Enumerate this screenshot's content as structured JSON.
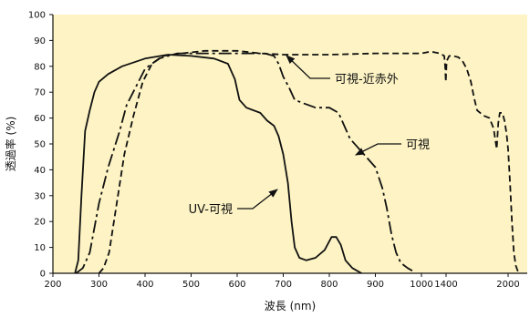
{
  "chart_data": {
    "type": "line",
    "title": "",
    "xlabel": "波長 (nm)",
    "ylabel": "透過率 (%)",
    "xlim": [
      200,
      2100
    ],
    "ylim": [
      0,
      100
    ],
    "x_ticks": [
      200,
      300,
      400,
      500,
      600,
      700,
      800,
      900,
      1000,
      1400,
      2000
    ],
    "x_tick_labels": [
      "200",
      "300",
      "400",
      "500",
      "600",
      "700",
      "800",
      "900",
      "1000",
      "1400",
      "2000"
    ],
    "y_ticks": [
      0,
      10,
      20,
      30,
      40,
      50,
      60,
      70,
      80,
      90,
      100
    ],
    "grid": false,
    "background_color": "#fdf3c4",
    "line_color": "#111111",
    "series": [
      {
        "label": "UV-可視",
        "style": "solid",
        "points": [
          [
            248,
            0
          ],
          [
            255,
            5
          ],
          [
            262,
            30
          ],
          [
            270,
            55
          ],
          [
            280,
            63
          ],
          [
            290,
            70
          ],
          [
            300,
            74
          ],
          [
            320,
            77
          ],
          [
            350,
            80
          ],
          [
            400,
            83
          ],
          [
            450,
            84.5
          ],
          [
            500,
            84
          ],
          [
            550,
            83
          ],
          [
            580,
            81
          ],
          [
            595,
            75
          ],
          [
            605,
            67
          ],
          [
            620,
            64
          ],
          [
            650,
            62
          ],
          [
            665,
            59
          ],
          [
            680,
            57
          ],
          [
            690,
            53
          ],
          [
            700,
            46
          ],
          [
            710,
            35
          ],
          [
            718,
            20
          ],
          [
            725,
            10
          ],
          [
            735,
            6
          ],
          [
            750,
            5
          ],
          [
            770,
            6
          ],
          [
            790,
            9
          ],
          [
            805,
            14
          ],
          [
            815,
            14
          ],
          [
            825,
            11
          ],
          [
            835,
            5
          ],
          [
            850,
            2
          ],
          [
            860,
            1
          ],
          [
            870,
            0
          ]
        ]
      },
      {
        "label": "可視",
        "style": "dashdot",
        "points": [
          [
            250,
            0
          ],
          [
            265,
            2
          ],
          [
            280,
            8
          ],
          [
            300,
            27
          ],
          [
            320,
            41
          ],
          [
            345,
            55
          ],
          [
            360,
            65
          ],
          [
            380,
            72
          ],
          [
            400,
            79
          ],
          [
            430,
            83
          ],
          [
            470,
            85
          ],
          [
            520,
            85
          ],
          [
            600,
            85
          ],
          [
            660,
            85
          ],
          [
            680,
            84
          ],
          [
            690,
            81
          ],
          [
            700,
            76
          ],
          [
            712,
            72
          ],
          [
            725,
            67
          ],
          [
            740,
            66
          ],
          [
            770,
            64
          ],
          [
            800,
            64
          ],
          [
            820,
            62
          ],
          [
            835,
            56
          ],
          [
            845,
            52
          ],
          [
            860,
            49
          ],
          [
            880,
            45
          ],
          [
            900,
            41
          ],
          [
            915,
            33
          ],
          [
            925,
            25
          ],
          [
            935,
            15
          ],
          [
            945,
            8
          ],
          [
            955,
            4
          ],
          [
            970,
            2
          ],
          [
            980,
            1
          ]
        ]
      },
      {
        "label": "可視-近赤外",
        "style": "dashed",
        "points": [
          [
            300,
            0
          ],
          [
            310,
            2
          ],
          [
            322,
            8
          ],
          [
            335,
            23
          ],
          [
            355,
            46
          ],
          [
            375,
            61
          ],
          [
            395,
            74
          ],
          [
            415,
            81
          ],
          [
            440,
            84
          ],
          [
            480,
            85
          ],
          [
            530,
            86
          ],
          [
            600,
            86
          ],
          [
            650,
            85
          ],
          [
            700,
            84.5
          ],
          [
            800,
            84.5
          ],
          [
            900,
            85
          ],
          [
            1000,
            85
          ],
          [
            1100,
            85.5
          ],
          [
            1200,
            85.5
          ],
          [
            1300,
            85
          ],
          [
            1370,
            84
          ],
          [
            1385,
            80
          ],
          [
            1395,
            74
          ],
          [
            1405,
            82
          ],
          [
            1430,
            84
          ],
          [
            1470,
            84
          ],
          [
            1520,
            83.5
          ],
          [
            1560,
            82
          ],
          [
            1600,
            79
          ],
          [
            1640,
            74
          ],
          [
            1670,
            68
          ],
          [
            1700,
            63
          ],
          [
            1760,
            61
          ],
          [
            1820,
            60
          ],
          [
            1860,
            56
          ],
          [
            1890,
            48
          ],
          [
            1905,
            58
          ],
          [
            1920,
            62
          ],
          [
            1945,
            62
          ],
          [
            1965,
            59
          ],
          [
            1985,
            54
          ],
          [
            2000,
            48
          ],
          [
            2010,
            35
          ],
          [
            2020,
            20
          ],
          [
            2030,
            8
          ],
          [
            2040,
            3
          ],
          [
            2055,
            0
          ]
        ]
      }
    ],
    "annotations": [
      {
        "text": "可視-近赤外",
        "series": "可視-近赤外"
      },
      {
        "text": "可視",
        "series": "可視"
      },
      {
        "text": "UV-可視",
        "series": "UV-可視"
      }
    ]
  }
}
